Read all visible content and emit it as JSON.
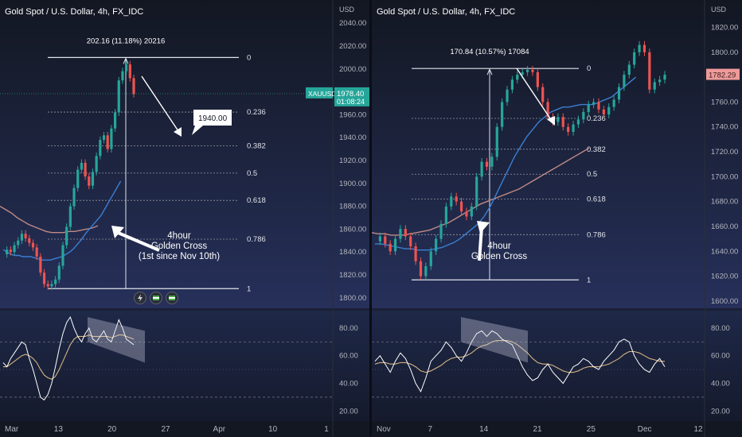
{
  "charts": [
    {
      "title": "Gold Spot / U.S. Dollar, 4h, FX_IDC",
      "currency_label": "USD",
      "price_ticks": [
        "2040.00",
        "2020.00",
        "2000.00",
        "1980.00",
        "1960.00",
        "1940.00",
        "1920.00",
        "1900.00",
        "1880.00",
        "1860.00",
        "1840.00",
        "1820.00",
        "1800.00"
      ],
      "rsi_ticks": [
        "80.00",
        "60.00",
        "40.00",
        "20.00"
      ],
      "time_ticks": [
        "Mar",
        "13",
        "20",
        "27",
        "Apr",
        "10",
        "1"
      ],
      "measure_label": "202.16 (11.18%) 20216",
      "fib_levels": [
        "0",
        "0.236",
        "0.382",
        "0.5",
        "0.618",
        "0.786",
        "1"
      ],
      "target_label": "1940.00",
      "symbol": "XAUUSD",
      "last_price": "1978.40",
      "countdown": "01:08:24",
      "annotation": [
        "4hour",
        "Golden Cross",
        "(1st since Nov 10th)"
      ],
      "badges": [
        "lightning-icon",
        "flag-icon",
        "flag-icon"
      ]
    },
    {
      "title": "Gold Spot / U.S. Dollar, 4h, FX_IDC",
      "currency_label": "USD",
      "price_ticks": [
        "1820.00",
        "1800.00",
        "1780.00",
        "1760.00",
        "1740.00",
        "1720.00",
        "1700.00",
        "1680.00",
        "1660.00",
        "1640.00",
        "1620.00",
        "1600.00"
      ],
      "rsi_ticks": [
        "80.00",
        "60.00",
        "40.00",
        "20.00"
      ],
      "time_ticks": [
        "Nov",
        "7",
        "14",
        "21",
        "25",
        "Dec",
        "12"
      ],
      "measure_label": "170.84 (10.57%) 17084",
      "fib_levels": [
        "0",
        "0.236",
        "0.382",
        "0.5",
        "0.618",
        "0.786",
        "1"
      ],
      "last_price": "1782.29",
      "annotation": [
        "4hour",
        "Golden Cross"
      ]
    }
  ],
  "chart_data": [
    {
      "type": "line",
      "title": "Gold Spot / U.S. Dollar, 4h, FX_IDC",
      "ylabel": "USD",
      "ylim": [
        1795,
        2045
      ],
      "fib": {
        "high": 2010,
        "low": 1808,
        "levels": [
          0,
          0.236,
          0.382,
          0.5,
          0.618,
          0.786,
          1
        ]
      },
      "price": [
        1838,
        1842,
        1840,
        1846,
        1850,
        1856,
        1852,
        1848,
        1844,
        1836,
        1822,
        1812,
        1810,
        1812,
        1816,
        1828,
        1846,
        1862,
        1880,
        1896,
        1912,
        1918,
        1906,
        1898,
        1910,
        1924,
        1938,
        1942,
        1930,
        1948,
        1962,
        1990,
        1998,
        2004,
        1992,
        1978
      ],
      "ma_fast": [
        1842,
        1840,
        1838,
        1837,
        1837,
        1836,
        1836,
        1836,
        1835,
        1834,
        1833,
        1833,
        1833,
        1834,
        1835,
        1836,
        1838,
        1840,
        1843,
        1847,
        1851,
        1856,
        1860,
        1864,
        1868,
        1872,
        1878,
        1884,
        1890,
        1896,
        1902
      ],
      "ma_slow": [
        1880,
        1877,
        1874,
        1870,
        1867,
        1864,
        1862,
        1860,
        1858,
        1857,
        1857,
        1857,
        1858,
        1858,
        1859,
        1860,
        1861,
        1863
      ],
      "rsi": [
        55,
        52,
        58,
        62,
        66,
        70,
        68,
        58,
        50,
        40,
        30,
        28,
        32,
        40,
        52,
        65,
        76,
        84,
        88,
        80,
        74,
        70,
        76,
        80,
        72,
        70,
        74,
        78,
        72,
        70,
        78,
        86,
        80,
        72,
        70,
        68
      ],
      "rsi_ma": [
        52,
        52,
        54,
        56,
        58,
        60,
        61,
        60,
        58,
        55,
        50,
        46,
        44,
        43,
        45,
        50,
        56,
        62,
        68,
        72,
        74,
        74,
        74,
        75,
        74,
        74,
        74,
        74,
        74,
        73,
        74,
        75,
        75,
        74,
        73,
        72
      ]
    },
    {
      "type": "line",
      "title": "Gold Spot / U.S. Dollar, 4h, FX_IDC",
      "ylabel": "USD",
      "ylim": [
        1598,
        1828
      ],
      "fib": {
        "high": 1787,
        "low": 1617,
        "levels": [
          0,
          0.236,
          0.382,
          0.5,
          0.618,
          0.786,
          1
        ]
      },
      "price": [
        1648,
        1652,
        1646,
        1640,
        1650,
        1658,
        1652,
        1644,
        1632,
        1620,
        1628,
        1640,
        1650,
        1662,
        1676,
        1684,
        1680,
        1672,
        1668,
        1676,
        1700,
        1712,
        1708,
        1716,
        1740,
        1760,
        1770,
        1778,
        1782,
        1784,
        1786,
        1784,
        1772,
        1760,
        1748,
        1744,
        1748,
        1740,
        1736,
        1742,
        1746,
        1752,
        1758,
        1760,
        1754,
        1750,
        1756,
        1762,
        1772,
        1782,
        1790,
        1800,
        1806,
        1800,
        1770,
        1776,
        1778,
        1782
      ],
      "ma_fast": [
        1646,
        1646,
        1645,
        1644,
        1643,
        1642,
        1642,
        1641,
        1641,
        1641,
        1642,
        1643,
        1645,
        1647,
        1650,
        1654,
        1658,
        1662,
        1668,
        1676,
        1686,
        1696,
        1706,
        1716,
        1724,
        1732,
        1738,
        1744,
        1748,
        1752,
        1754,
        1756,
        1756,
        1757,
        1758,
        1758,
        1758,
        1760,
        1762,
        1764,
        1768,
        1772,
        1776,
        1780
      ],
      "ma_slow": [
        1655,
        1654,
        1654,
        1653,
        1653,
        1653,
        1654,
        1655,
        1656,
        1657,
        1659,
        1661,
        1663,
        1666,
        1669,
        1672,
        1675,
        1678,
        1680,
        1682,
        1684,
        1686,
        1688,
        1690,
        1693,
        1696,
        1699,
        1702,
        1705,
        1708,
        1711,
        1714,
        1717,
        1720,
        1723
      ],
      "rsi": [
        56,
        60,
        54,
        48,
        56,
        62,
        58,
        50,
        40,
        34,
        44,
        56,
        60,
        64,
        70,
        66,
        60,
        56,
        62,
        70,
        76,
        78,
        74,
        78,
        76,
        72,
        70,
        68,
        60,
        52,
        46,
        42,
        44,
        50,
        54,
        48,
        44,
        40,
        46,
        52,
        54,
        58,
        56,
        52,
        50,
        56,
        60,
        64,
        70,
        72,
        70,
        60,
        54,
        50,
        48,
        54,
        58,
        52
      ],
      "rsi_ma": [
        54,
        55,
        55,
        54,
        54,
        55,
        55,
        54,
        52,
        49,
        48,
        49,
        51,
        53,
        56,
        58,
        59,
        59,
        60,
        62,
        65,
        67,
        68,
        70,
        71,
        71,
        71,
        70,
        68,
        65,
        62,
        58,
        55,
        54,
        54,
        53,
        51,
        49,
        48,
        48,
        49,
        51,
        52,
        52,
        52,
        53,
        54,
        56,
        58,
        61,
        63,
        63,
        62,
        60,
        58,
        57,
        56,
        56
      ]
    }
  ]
}
